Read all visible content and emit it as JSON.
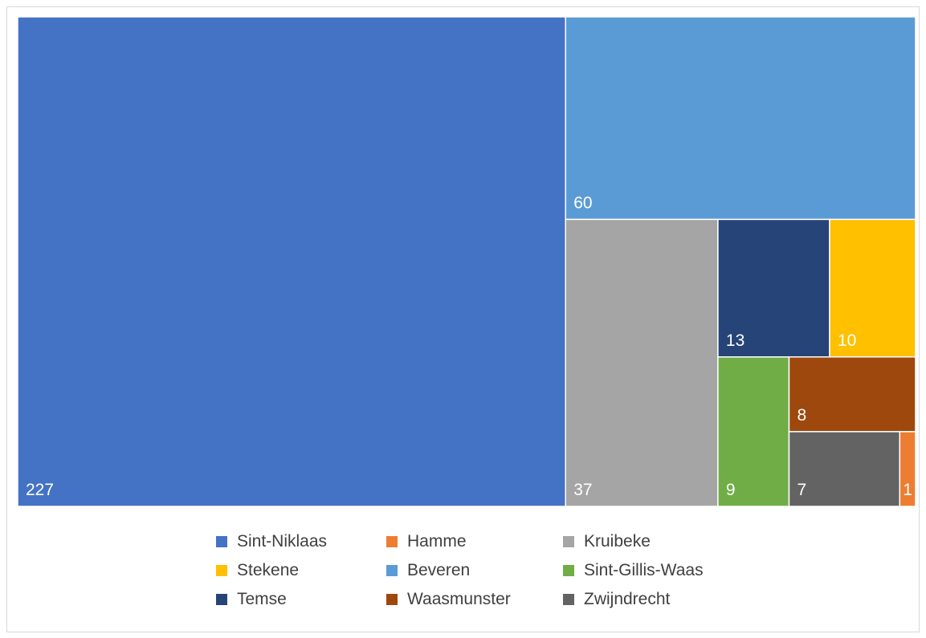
{
  "chart_data": {
    "type": "treemap",
    "title": "",
    "items": [
      {
        "name": "Sint-Niklaas",
        "value": 227,
        "color": "#4472C4"
      },
      {
        "name": "Beveren",
        "value": 60,
        "color": "#5B9BD5"
      },
      {
        "name": "Kruibeke",
        "value": 37,
        "color": "#A5A5A5"
      },
      {
        "name": "Temse",
        "value": 13,
        "color": "#264478"
      },
      {
        "name": "Stekene",
        "value": 10,
        "color": "#FFC000"
      },
      {
        "name": "Sint-Gillis-Waas",
        "value": 9,
        "color": "#70AD47"
      },
      {
        "name": "Waasmunster",
        "value": 8,
        "color": "#9E480E"
      },
      {
        "name": "Zwijndrecht",
        "value": 7,
        "color": "#636363"
      },
      {
        "name": "Hamme",
        "value": 1,
        "color": "#ED7D31"
      }
    ],
    "legend": {
      "position": "bottom",
      "entries": [
        {
          "name": "Sint-Niklaas",
          "color": "#4472C4"
        },
        {
          "name": "Hamme",
          "color": "#ED7D31"
        },
        {
          "name": "Kruibeke",
          "color": "#A5A5A5"
        },
        {
          "name": "Stekene",
          "color": "#FFC000"
        },
        {
          "name": "Beveren",
          "color": "#5B9BD5"
        },
        {
          "name": "Sint-Gillis-Waas",
          "color": "#70AD47"
        },
        {
          "name": "Temse",
          "color": "#264478"
        },
        {
          "name": "Waasmunster",
          "color": "#9E480E"
        },
        {
          "name": "Zwijndrecht",
          "color": "#636363"
        }
      ]
    }
  }
}
